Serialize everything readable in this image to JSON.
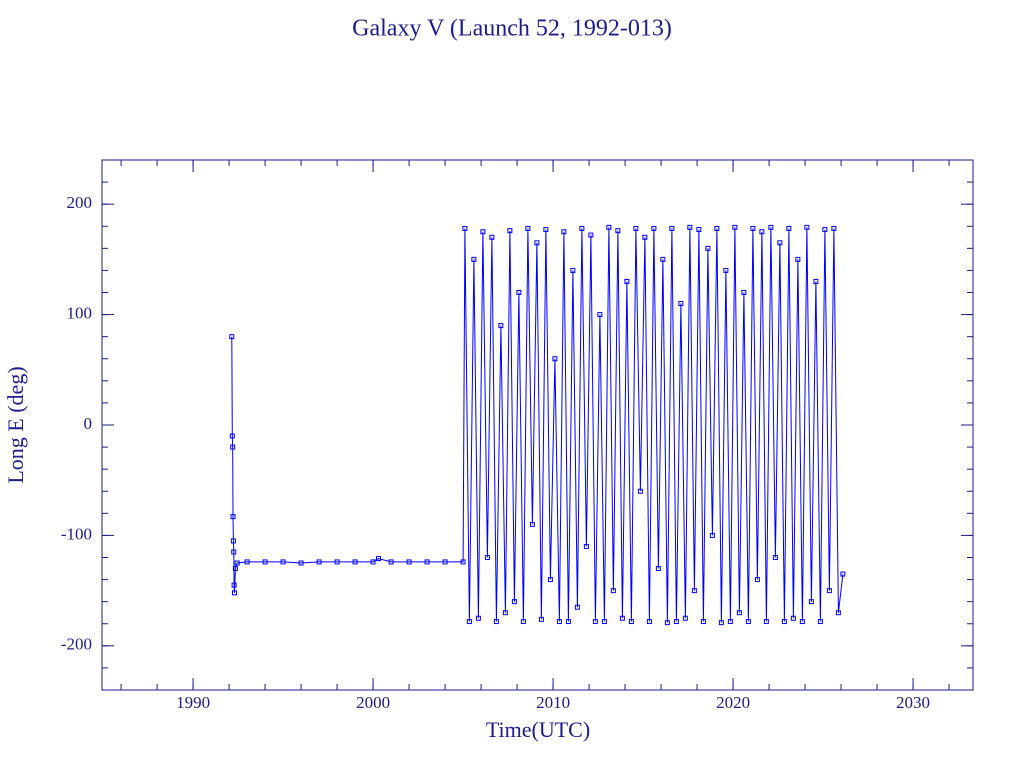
{
  "chart_data": {
    "type": "line",
    "title": "Galaxy V (Launch 52, 1992-013)",
    "x_label": "Time(UTC)",
    "y_label": "Long E (deg)",
    "xlim": [
      1984.94,
      2033.33
    ],
    "ylim": [
      -240,
      240
    ],
    "xticks": [
      1990,
      2000,
      2010,
      2020,
      2030
    ],
    "yticks": [
      -200,
      -100,
      0,
      100,
      200
    ],
    "frame_color": "#1c1c8c",
    "series": [
      {
        "name": "Long E",
        "color": "#0000ff",
        "x": [
          1992.15,
          1992.18,
          1992.2,
          1992.22,
          1992.24,
          1992.26,
          1992.28,
          1992.3,
          1992.35,
          1992.45,
          1993,
          1994,
          1995,
          1996,
          1997,
          1998,
          1999,
          2000,
          2000.3,
          2001,
          2002,
          2003,
          2004,
          2005.0,
          2005.1,
          2005.35,
          2005.6,
          2005.85,
          2006.1,
          2006.35,
          2006.6,
          2006.85,
          2007.1,
          2007.35,
          2007.6,
          2007.85,
          2008.1,
          2008.35,
          2008.6,
          2008.85,
          2009.1,
          2009.35,
          2009.6,
          2009.85,
          2010.1,
          2010.35,
          2010.6,
          2010.85,
          2011.1,
          2011.35,
          2011.6,
          2011.85,
          2012.1,
          2012.35,
          2012.6,
          2012.85,
          2013.1,
          2013.35,
          2013.6,
          2013.85,
          2014.1,
          2014.35,
          2014.6,
          2014.85,
          2015.1,
          2015.35,
          2015.6,
          2015.85,
          2016.1,
          2016.35,
          2016.6,
          2016.85,
          2017.1,
          2017.35,
          2017.6,
          2017.85,
          2018.1,
          2018.35,
          2018.6,
          2018.85,
          2019.1,
          2019.35,
          2019.6,
          2019.85,
          2020.1,
          2020.35,
          2020.6,
          2020.85,
          2021.1,
          2021.35,
          2021.6,
          2021.85,
          2022.1,
          2022.35,
          2022.6,
          2022.85,
          2023.1,
          2023.35,
          2023.6,
          2023.85,
          2024.1,
          2024.35,
          2024.6,
          2024.85,
          2025.1,
          2025.35,
          2025.6,
          2025.85,
          2026.1
        ],
        "values": [
          80,
          -10,
          -20,
          -83,
          -105,
          -115,
          -145,
          -152,
          -130,
          -125,
          -124,
          -124,
          -124,
          -125,
          -124,
          -124,
          -124,
          -124,
          -121,
          -124,
          -124,
          -124,
          -124,
          -124,
          178,
          -178,
          150,
          -175,
          175,
          -120,
          170,
          -178,
          90,
          -170,
          176,
          -160,
          120,
          -178,
          178,
          -90,
          165,
          -176,
          177,
          -140,
          60,
          -178,
          175,
          -178,
          140,
          -165,
          178,
          -110,
          172,
          -178,
          100,
          -178,
          179,
          -150,
          176,
          -175,
          130,
          -178,
          178,
          -60,
          170,
          -178,
          178,
          -130,
          150,
          -179,
          178,
          -178,
          110,
          -175,
          179,
          -150,
          177,
          -178,
          160,
          -100,
          178,
          -179,
          140,
          -178,
          179,
          -170,
          120,
          -178,
          178,
          -140,
          175,
          -178,
          179,
          -120,
          165,
          -178,
          178,
          -175,
          150,
          -178,
          179,
          -160,
          130,
          -178,
          177,
          -150,
          178,
          -170,
          -135
        ]
      }
    ]
  }
}
